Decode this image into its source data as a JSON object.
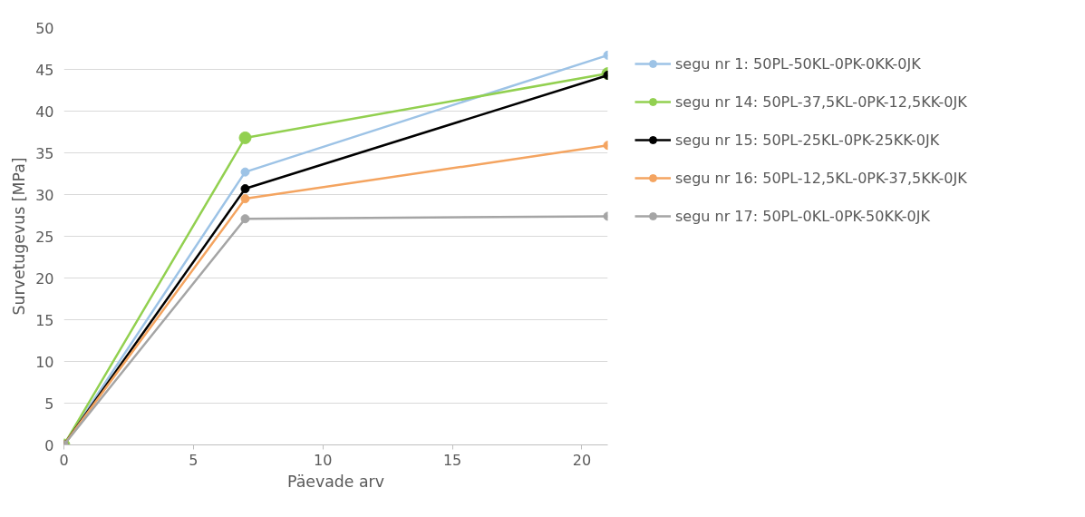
{
  "chart_data": {
    "type": "line",
    "xlabel": "Päevade arv",
    "ylabel": "Survetugevus [MPa]",
    "x": [
      0,
      7,
      21
    ],
    "series": [
      {
        "name": "segu nr 1: 50PL-50KL-0PK-0KK-0JK",
        "color": "#9dc3e6",
        "values": [
          0,
          32.7,
          46.7
        ]
      },
      {
        "name": "segu nr 14: 50PL-37,5KL-0PK-12,5KK-0JK",
        "color": "#92d050",
        "values": [
          0,
          36.8,
          44.5
        ]
      },
      {
        "name": "segu nr 15: 50PL-25KL-0PK-25KK-0JK",
        "color": "#000000",
        "values": [
          0,
          30.7,
          44.3
        ]
      },
      {
        "name": "segu nr 16: 50PL-12,5KL-0PK-37,5KK-0JK",
        "color": "#f4a460",
        "values": [
          0,
          29.5,
          35.9
        ]
      },
      {
        "name": "segu nr 17: 50PL-0KL-0PK-50KK-0JK",
        "color": "#a5a5a5",
        "values": [
          0,
          27.1,
          27.4
        ]
      }
    ],
    "xlim": [
      0,
      21
    ],
    "xticks": [
      0,
      5,
      10,
      15,
      20
    ],
    "ylim": [
      0,
      50
    ],
    "yticks": [
      0,
      5,
      10,
      15,
      20,
      25,
      30,
      35,
      40,
      45,
      50
    ],
    "grid": "y",
    "legend": "right",
    "marker": "circle",
    "line_style": "solid"
  }
}
